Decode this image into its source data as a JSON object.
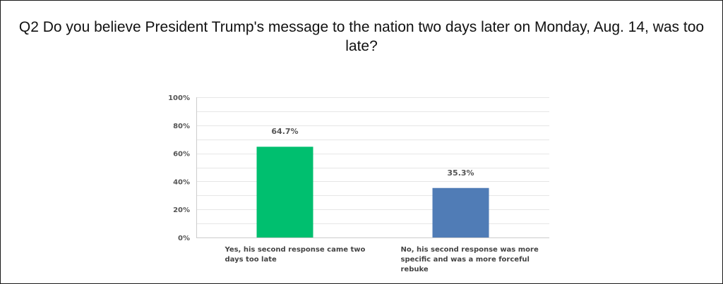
{
  "chart_data": {
    "type": "bar",
    "title": "Q2 Do you believe President Trump's message to the nation two days later on Monday, Aug. 14, was too late?",
    "categories": [
      "Yes, his second response came two days too late",
      "No, his second response was more specific and was a more forceful rebuke"
    ],
    "values": [
      64.7,
      35.3
    ],
    "data_labels": [
      "64.7%",
      "35.3%"
    ],
    "colors": [
      "#00bf6f",
      "#507cb6"
    ],
    "ylim": [
      0,
      100
    ],
    "yticks": [
      "0%",
      "20%",
      "40%",
      "60%",
      "80%",
      "100%"
    ],
    "grid": true,
    "legend": false
  }
}
